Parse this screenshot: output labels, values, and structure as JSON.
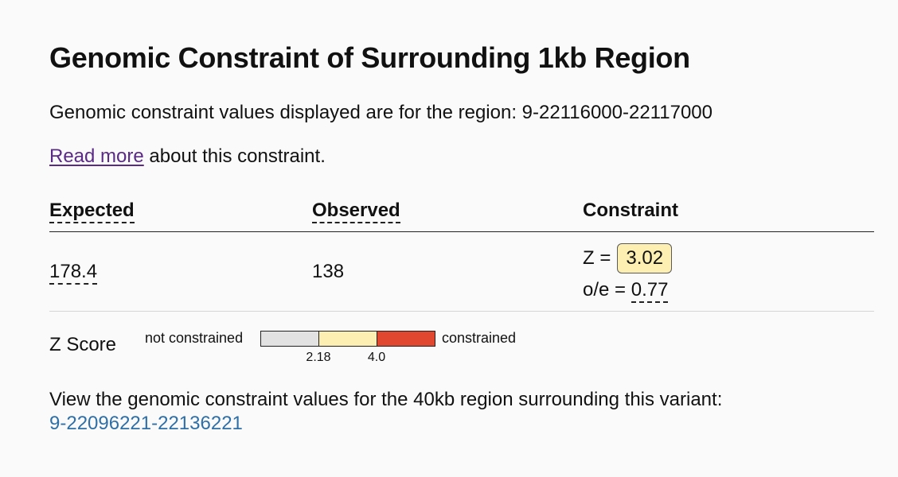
{
  "title": "Genomic Constraint of Surrounding 1kb Region",
  "description": {
    "text": "Genomic constraint values displayed are for the region: 9-22116000-22117000"
  },
  "read_more": {
    "link_label": "Read more",
    "suffix": " about this constraint."
  },
  "table": {
    "headers": {
      "expected": "Expected",
      "observed": "Observed",
      "constraint": "Constraint"
    },
    "row": {
      "expected": "178.4",
      "observed": "138",
      "z_prefix": "Z =",
      "z_value": "3.02",
      "oe_prefix": "o/e = ",
      "oe_value": "0.77"
    }
  },
  "legend": {
    "label": "Z Score",
    "left_text": "not constrained",
    "right_text": "constrained",
    "ticks": [
      "2.18",
      "4.0"
    ],
    "segments": [
      {
        "color": "#e2e2e2",
        "fraction": 0.3333
      },
      {
        "color": "#fcefb1",
        "fraction": 0.3333
      },
      {
        "color": "#e0472e",
        "fraction": 0.3334
      }
    ]
  },
  "footer": {
    "text": "View the genomic constraint values for the 40kb region surrounding this variant:",
    "link": "9-22096221-22136221"
  },
  "colors": {
    "link_visited": "#5b2a86",
    "link": "#2e6fa7",
    "badge_bg": "#fcefb1"
  }
}
